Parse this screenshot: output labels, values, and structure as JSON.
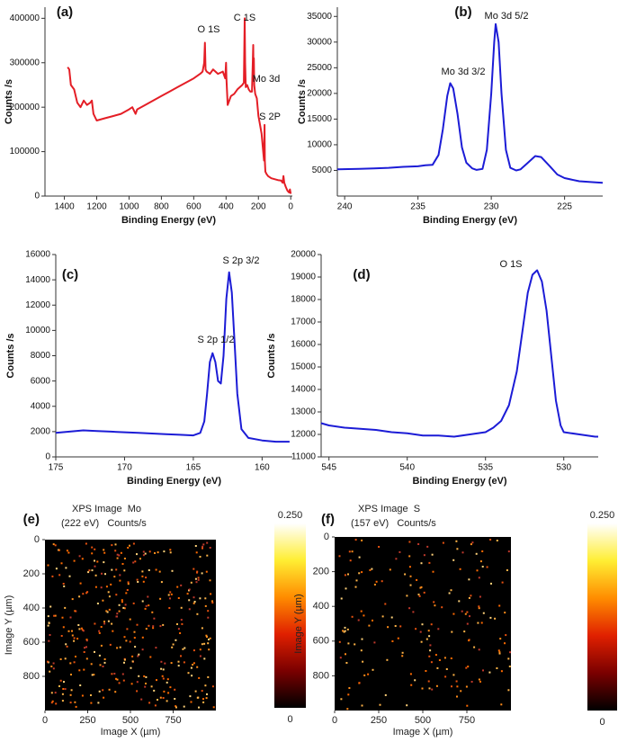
{
  "chart_data": [
    {
      "type": "line",
      "panel_label": "(a)",
      "xlabel": "Binding Energy (eV)",
      "ylabel": "Counts /s",
      "annotations": [
        "O 1S",
        "C 1S",
        "Mo 3d",
        "S 2P"
      ],
      "color": "#e41e26",
      "x": [
        1380,
        1370,
        1360,
        1340,
        1320,
        1300,
        1280,
        1260,
        1240,
        1230,
        1220,
        1200,
        1150,
        1100,
        1050,
        1000,
        980,
        960,
        950,
        900,
        850,
        800,
        750,
        700,
        650,
        600,
        560,
        545,
        535,
        531,
        527,
        520,
        500,
        480,
        450,
        420,
        405,
        400,
        398,
        390,
        380,
        370,
        350,
        330,
        300,
        290,
        285,
        282,
        278,
        270,
        260,
        250,
        240,
        235,
        232,
        230,
        228,
        226,
        220,
        210,
        200,
        190,
        180,
        170,
        165,
        162,
        160,
        157,
        150,
        140,
        120,
        100,
        80,
        60,
        50,
        45,
        40,
        30,
        20,
        10,
        5,
        0
      ],
      "values": [
        290000,
        285000,
        250000,
        240000,
        210000,
        200000,
        215000,
        205000,
        210000,
        215000,
        185000,
        170000,
        175000,
        180000,
        185000,
        195000,
        200000,
        185000,
        195000,
        205000,
        215000,
        225000,
        235000,
        245000,
        255000,
        265000,
        275000,
        280000,
        300000,
        345000,
        285000,
        280000,
        275000,
        285000,
        275000,
        280000,
        265000,
        300000,
        265000,
        205000,
        215000,
        225000,
        230000,
        240000,
        250000,
        255000,
        400000,
        300000,
        245000,
        250000,
        240000,
        235000,
        235000,
        300000,
        340000,
        260000,
        310000,
        250000,
        230000,
        220000,
        180000,
        160000,
        140000,
        100000,
        80000,
        160000,
        80000,
        55000,
        50000,
        45000,
        40000,
        38000,
        36000,
        35000,
        30000,
        45000,
        30000,
        20000,
        12000,
        8000,
        15000,
        5000
      ],
      "xlim": [
        1520,
        -10
      ],
      "ylim": [
        0,
        425000
      ],
      "xticks": [
        1400,
        1200,
        1000,
        800,
        600,
        400,
        200,
        0
      ],
      "yticks": [
        0,
        100000,
        200000,
        300000,
        400000
      ]
    },
    {
      "type": "line",
      "panel_label": "(b)",
      "xlabel": "Binding Energy (eV)",
      "ylabel": "Counts /s",
      "annotations": [
        "Mo 3d 3/2",
        "Mo 3d 5/2"
      ],
      "color": "#1c1cd6",
      "x": [
        240.5,
        239,
        238,
        237,
        236,
        235,
        234.5,
        234,
        233.6,
        233.3,
        233,
        232.8,
        232.6,
        232.3,
        232,
        231.7,
        231.3,
        231,
        230.6,
        230.3,
        230,
        229.8,
        229.7,
        229.5,
        229.3,
        229,
        228.7,
        228.3,
        228,
        227.5,
        227,
        226.6,
        226,
        225.5,
        225,
        224,
        223,
        222.4
      ],
      "values": [
        5200,
        5300,
        5400,
        5500,
        5700,
        5800,
        6000,
        6100,
        8000,
        13000,
        19500,
        22000,
        21000,
        16000,
        9500,
        6500,
        5400,
        5100,
        5300,
        9000,
        20000,
        30000,
        33500,
        30000,
        20000,
        9000,
        5500,
        5000,
        5200,
        6500,
        7800,
        7600,
        5800,
        4200,
        3500,
        2900,
        2700,
        2600
      ],
      "xlim": [
        240.5,
        222.4
      ],
      "ylim": [
        0,
        36800
      ],
      "xticks": [
        240,
        235,
        230,
        225
      ],
      "yticks": [
        5000,
        10000,
        15000,
        20000,
        25000,
        30000,
        35000
      ]
    },
    {
      "type": "line",
      "panel_label": "(c)",
      "xlabel": "Binding Energy (eV)",
      "ylabel": "Counts /s",
      "annotations": [
        "S 2p 1/2",
        "S 2p 3/2"
      ],
      "color": "#1c1cd6",
      "x": [
        175,
        174,
        173,
        172,
        171,
        170,
        169,
        168,
        167,
        166,
        165,
        164.5,
        164.2,
        164,
        163.8,
        163.6,
        163.4,
        163.2,
        163,
        162.8,
        162.6,
        162.4,
        162.2,
        162,
        161.8,
        161.5,
        161,
        160,
        159,
        158
      ],
      "values": [
        1900,
        2000,
        2100,
        2050,
        2000,
        1950,
        1900,
        1850,
        1800,
        1750,
        1700,
        1900,
        2800,
        5000,
        7500,
        8200,
        7500,
        6000,
        5800,
        8000,
        12500,
        14600,
        13000,
        9000,
        5000,
        2200,
        1500,
        1300,
        1200,
        1200
      ],
      "xlim": [
        175,
        157.8
      ],
      "ylim": [
        0,
        16000
      ],
      "xticks": [
        175,
        170,
        165,
        160
      ],
      "yticks": [
        0,
        2000,
        4000,
        6000,
        8000,
        10000,
        12000,
        14000,
        16000
      ]
    },
    {
      "type": "line",
      "panel_label": "(d)",
      "xlabel": "Binding Energy (eV)",
      "ylabel": "Counts /s",
      "annotations": [
        "O 1S"
      ],
      "color": "#1c1cd6",
      "x": [
        545.5,
        545,
        544,
        543,
        542,
        541,
        540,
        539,
        538,
        537,
        536,
        535,
        534.5,
        534,
        533.5,
        533,
        532.6,
        532.3,
        532,
        531.7,
        531.4,
        531.1,
        530.8,
        530.5,
        530.2,
        530,
        529,
        528,
        527.8
      ],
      "values": [
        12500,
        12400,
        12300,
        12250,
        12200,
        12100,
        12050,
        11950,
        11950,
        11900,
        12000,
        12100,
        12300,
        12600,
        13300,
        14800,
        16800,
        18300,
        19100,
        19300,
        18800,
        17500,
        15500,
        13500,
        12400,
        12100,
        12000,
        11900,
        11900
      ],
      "xlim": [
        545.5,
        527.8
      ],
      "ylim": [
        11000,
        20000
      ],
      "xticks": [
        545,
        540,
        535,
        530
      ],
      "yticks": [
        11000,
        12000,
        13000,
        14000,
        15000,
        16000,
        17000,
        18000,
        19000,
        20000
      ]
    },
    {
      "type": "heatmap",
      "panel_label": "(e)",
      "title": "XPS Image  Mo",
      "subtitle": "(222 eV)   Counts/s",
      "xlabel": "Image X (µm)",
      "ylabel": "Image Y (µm)",
      "xlim": [
        0,
        1000
      ],
      "ylim": [
        0,
        1000
      ],
      "xticks": [
        0,
        250,
        500,
        750
      ],
      "yticks": [
        0,
        200,
        400,
        600,
        800
      ],
      "colorbar_lim": [
        0,
        0.25
      ],
      "colorbar_ticks": [
        {
          "value": 0.25,
          "label": "0.250"
        },
        0
      ],
      "colormap": [
        "#000000",
        "#7a0000",
        "#e02000",
        "#ff8c00",
        "#ffee33",
        "#ffffff"
      ]
    },
    {
      "type": "heatmap",
      "panel_label": "(f)",
      "title": "XPS Image  S",
      "subtitle": "(157 eV)   Counts/s",
      "xlabel": "Image X (µm)",
      "ylabel": "Image Y (µm)",
      "xlim": [
        0,
        1000
      ],
      "ylim": [
        0,
        1000
      ],
      "xticks": [
        0,
        250,
        500,
        750
      ],
      "yticks": [
        0,
        200,
        400,
        600,
        800
      ],
      "colorbar_lim": [
        0,
        0.25
      ],
      "colorbar_ticks": [
        {
          "value": 0.25,
          "label": "0.250"
        },
        0
      ],
      "colormap": [
        "#000000",
        "#7a0000",
        "#e02000",
        "#ff8c00",
        "#ffee33",
        "#ffffff"
      ]
    }
  ]
}
